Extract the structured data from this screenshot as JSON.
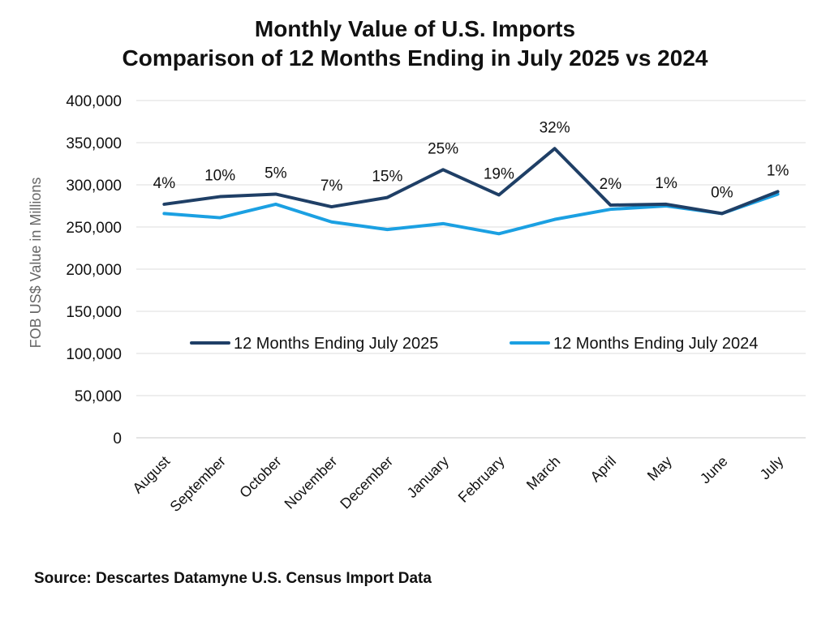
{
  "chart_data": {
    "type": "line",
    "title": "Monthly Value of U.S. Imports",
    "subtitle": "Comparison of 12 Months Ending in July 2025 vs 2024",
    "xlabel": "",
    "ylabel": "FOB US$ Value in Millions",
    "ylim": [
      0,
      400000
    ],
    "yticks": [
      0,
      50000,
      100000,
      150000,
      200000,
      250000,
      300000,
      350000,
      400000
    ],
    "ytick_labels": [
      "0",
      "50,000",
      "100,000",
      "150,000",
      "200,000",
      "250,000",
      "300,000",
      "350,000",
      "400,000"
    ],
    "categories": [
      "August",
      "September",
      "October",
      "November",
      "December",
      "January",
      "February",
      "March",
      "April",
      "May",
      "June",
      "July"
    ],
    "series": [
      {
        "name": "12 Months Ending July 2025",
        "color": "#1f3f66",
        "values": [
          277000,
          286000,
          289000,
          274000,
          285000,
          318000,
          288000,
          343000,
          276000,
          277000,
          266000,
          292000
        ]
      },
      {
        "name": "12 Months Ending July 2024",
        "color": "#1ba0e2",
        "values": [
          266000,
          261000,
          277000,
          256000,
          247000,
          254000,
          242000,
          259000,
          271000,
          275000,
          266000,
          289000
        ]
      }
    ],
    "annotations": [
      "4%",
      "10%",
      "5%",
      "7%",
      "15%",
      "25%",
      "19%",
      "32%",
      "2%",
      "1%",
      "0%",
      "1%"
    ],
    "grid": true,
    "legend_position": "center"
  },
  "source_text": "Source: Descartes Datamyne U.S. Census Import Data"
}
